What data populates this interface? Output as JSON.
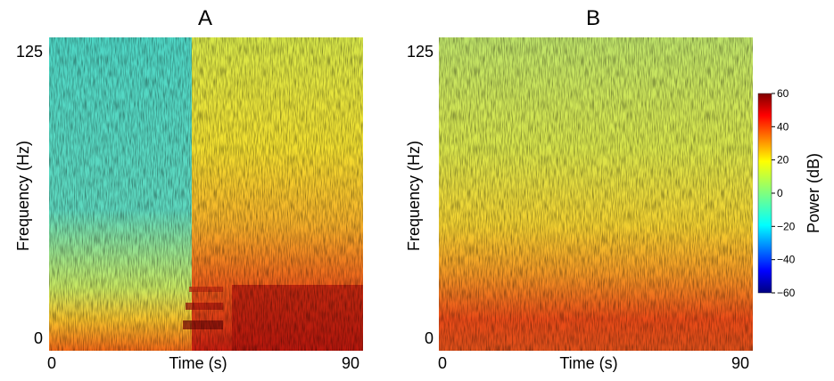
{
  "chart_data": [
    {
      "type": "heatmap",
      "title": "A",
      "xlabel": "Time (s)",
      "ylabel": "Frequency (Hz)",
      "xlim": [
        0,
        90
      ],
      "ylim": [
        0,
        125
      ],
      "x_ticks": [
        "0",
        "90"
      ],
      "y_ticks": [
        "0",
        "125"
      ],
      "description_values": {
        "low_power_region": {
          "time": [
            0,
            40
          ],
          "frequency": [
            20,
            125
          ],
          "power_db": -10
        },
        "high_power_region": {
          "time": [
            40,
            90
          ],
          "frequency": [
            0,
            40
          ],
          "power_db": 45
        },
        "banded_low_freq_onset_time": 40
      }
    },
    {
      "type": "heatmap",
      "title": "B",
      "xlabel": "Time (s)",
      "ylabel": "Frequency (Hz)",
      "xlim": [
        0,
        90
      ],
      "ylim": [
        0,
        125
      ],
      "x_ticks": [
        "0",
        "90"
      ],
      "y_ticks": [
        "0",
        "125"
      ],
      "description_values": {
        "high_frequency_power_db": 15,
        "low_frequency_power_db": 40
      }
    }
  ],
  "colorbar": {
    "label": "Power (dB)",
    "range": [
      -60,
      60
    ],
    "ticks": [
      "60",
      "40",
      "20",
      "0",
      "−20",
      "−40",
      "−60"
    ],
    "tick_values": [
      60,
      40,
      20,
      0,
      -20,
      -40,
      -60
    ],
    "colormap": "jet"
  }
}
